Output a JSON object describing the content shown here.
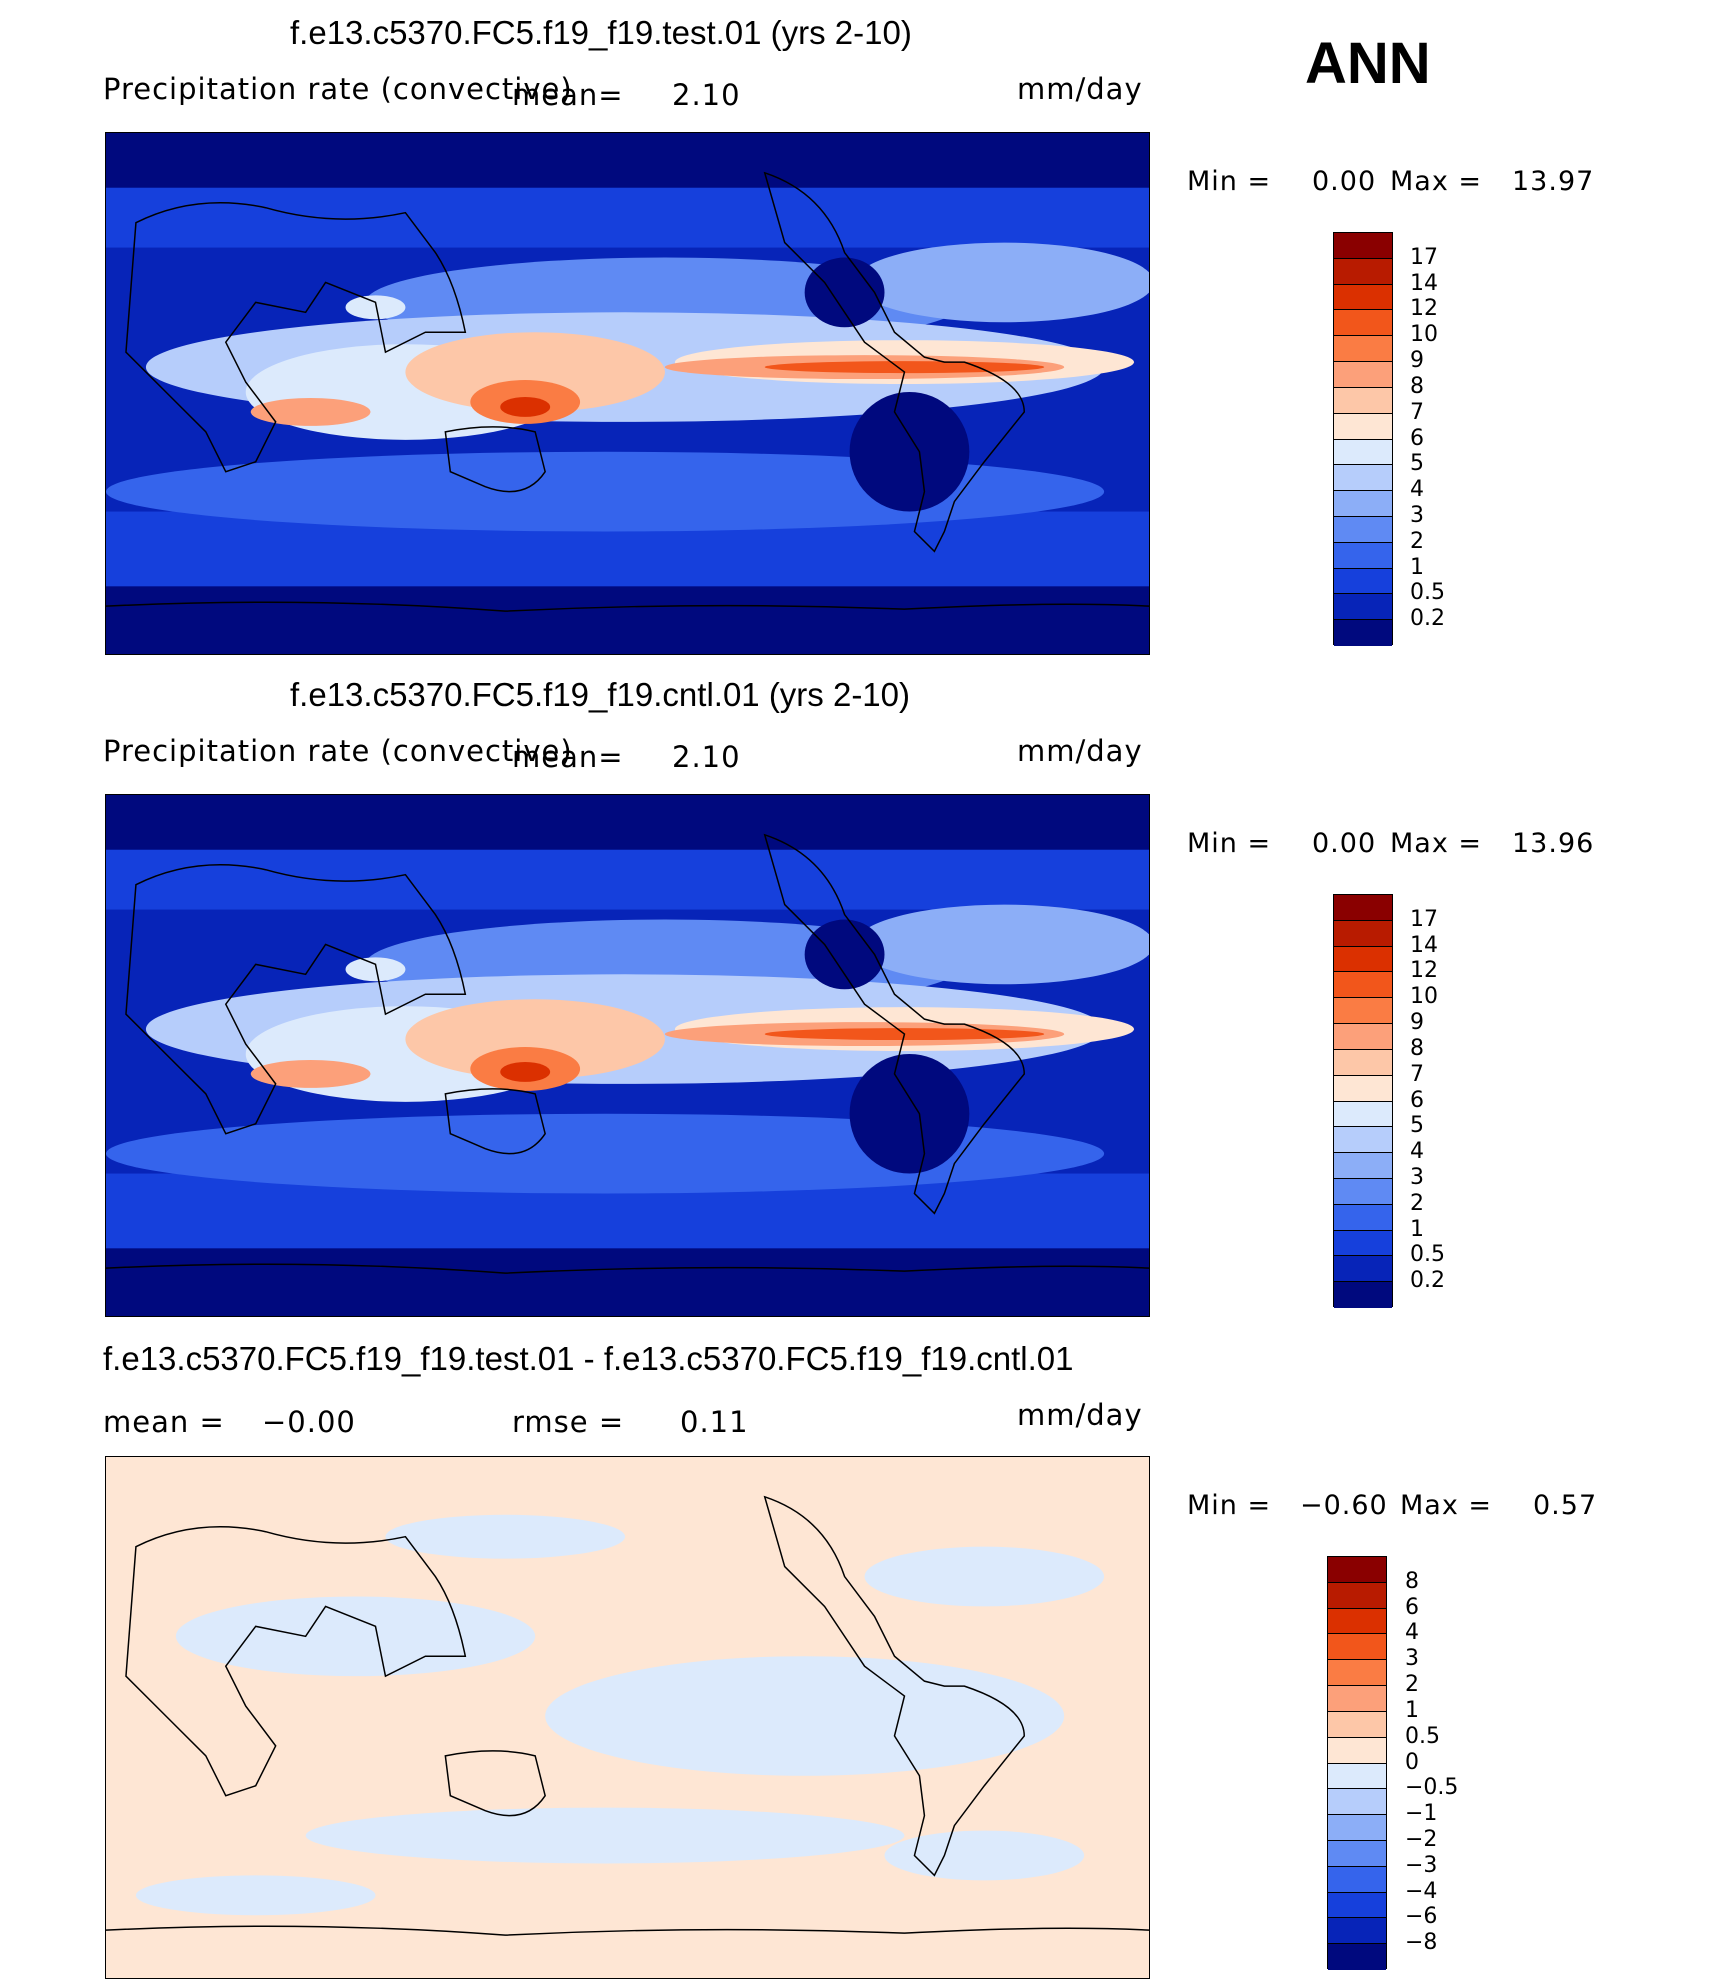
{
  "season": "ANN",
  "panels": [
    {
      "title": "f.e13.c5370.FC5.f19_f19.test.01 (yrs 2-10)",
      "variable": "Precipitation rate (convective)",
      "mean_label": "mean=",
      "mean_value": "2.10",
      "units": "mm/day",
      "min_label": "Min =",
      "min_value": "0.00",
      "max_label": "Max =",
      "max_value": "13.97",
      "colorbar_labels": [
        "17",
        "14",
        "12",
        "10",
        "9",
        "8",
        "7",
        "6",
        "5",
        "4",
        "3",
        "2",
        "1",
        "0.5",
        "0.2"
      ]
    },
    {
      "title": "f.e13.c5370.FC5.f19_f19.cntl.01 (yrs 2-10)",
      "variable": "Precipitation rate (convective)",
      "mean_label": "mean=",
      "mean_value": "2.10",
      "units": "mm/day",
      "min_label": "Min =",
      "min_value": "0.00",
      "max_label": "Max =",
      "max_value": "13.96",
      "colorbar_labels": [
        "17",
        "14",
        "12",
        "10",
        "9",
        "8",
        "7",
        "6",
        "5",
        "4",
        "3",
        "2",
        "1",
        "0.5",
        "0.2"
      ]
    },
    {
      "title": "f.e13.c5370.FC5.f19_f19.test.01 - f.e13.c5370.FC5.f19_f19.cntl.01",
      "mean_label": "mean =",
      "mean_value": "−0.00",
      "rmse_label": "rmse =",
      "rmse_value": "0.11",
      "units": "mm/day",
      "min_label": "Min =",
      "min_value": "−0.60",
      "max_label": "Max =",
      "max_value": "0.57",
      "colorbar_labels": [
        "8",
        "6",
        "4",
        "3",
        "2",
        "1",
        "0.5",
        "0",
        "−0.5",
        "−1",
        "−2",
        "−3",
        "−4",
        "−6",
        "−8"
      ]
    }
  ],
  "colors": {
    "precip": [
      "#8a0000",
      "#b81b00",
      "#db3000",
      "#f2561b",
      "#fa7c44",
      "#fca07a",
      "#fdc7a8",
      "#fee6d4",
      "#dceafc",
      "#b6cdfb",
      "#8caef7",
      "#5f8af3",
      "#3564ec",
      "#1640dc",
      "#0724b8",
      "#00097e"
    ],
    "diff": [
      "#8a0000",
      "#b81b00",
      "#db3000",
      "#f2561b",
      "#fa7c44",
      "#fca07a",
      "#fdc7a8",
      "#fee6d4",
      "#dceafc",
      "#b6cdfb",
      "#8caef7",
      "#5f8af3",
      "#3564ec",
      "#1640dc",
      "#0724b8",
      "#00097e"
    ]
  }
}
